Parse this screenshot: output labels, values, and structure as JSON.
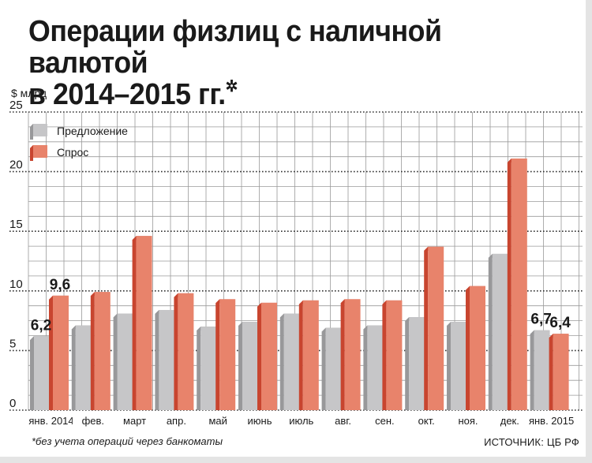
{
  "title_line1": "Операции физлиц с наличной валютой",
  "title_line2": "в 2014–2015 гг.",
  "title_mark": "✲",
  "footnote": "*без учета операций через банкоматы",
  "source": "ИСТОЧНИК: ЦБ РФ",
  "colors": {
    "supply_front": "#c6c6c8",
    "supply_side": "#98989a",
    "demand_front": "#e8836b",
    "demand_side": "#c8452f",
    "grid": "#9a9a9a",
    "dotted": "#333333"
  },
  "chart_data": {
    "type": "bar",
    "ylabel": "$ млрд",
    "ylim": [
      0,
      25
    ],
    "yticks": [
      0,
      5,
      10,
      15,
      20,
      25
    ],
    "categories": [
      "янв. 2014",
      "фев.",
      "март",
      "апр.",
      "май",
      "июнь",
      "июль",
      "авг.",
      "сен.",
      "окт.",
      "ноя.",
      "дек.",
      "янв. 2015"
    ],
    "series": [
      {
        "name": "Предложение",
        "values": [
          6.2,
          7.1,
          8.1,
          8.4,
          7.0,
          7.4,
          8.1,
          6.9,
          7.1,
          7.8,
          7.4,
          13.1,
          6.7
        ]
      },
      {
        "name": "Спрос",
        "values": [
          9.6,
          9.9,
          14.6,
          9.8,
          9.3,
          9.0,
          9.2,
          9.3,
          9.2,
          13.7,
          10.4,
          21.1,
          6.4
        ]
      }
    ],
    "data_labels": [
      {
        "index": 0,
        "series": 0,
        "text": "6,2"
      },
      {
        "index": 0,
        "series": 1,
        "text": "9,6"
      },
      {
        "index": 12,
        "series": 0,
        "text": "6,7"
      },
      {
        "index": 12,
        "series": 1,
        "text": "6,4"
      }
    ],
    "legend_position": "top-left",
    "grid": true
  }
}
